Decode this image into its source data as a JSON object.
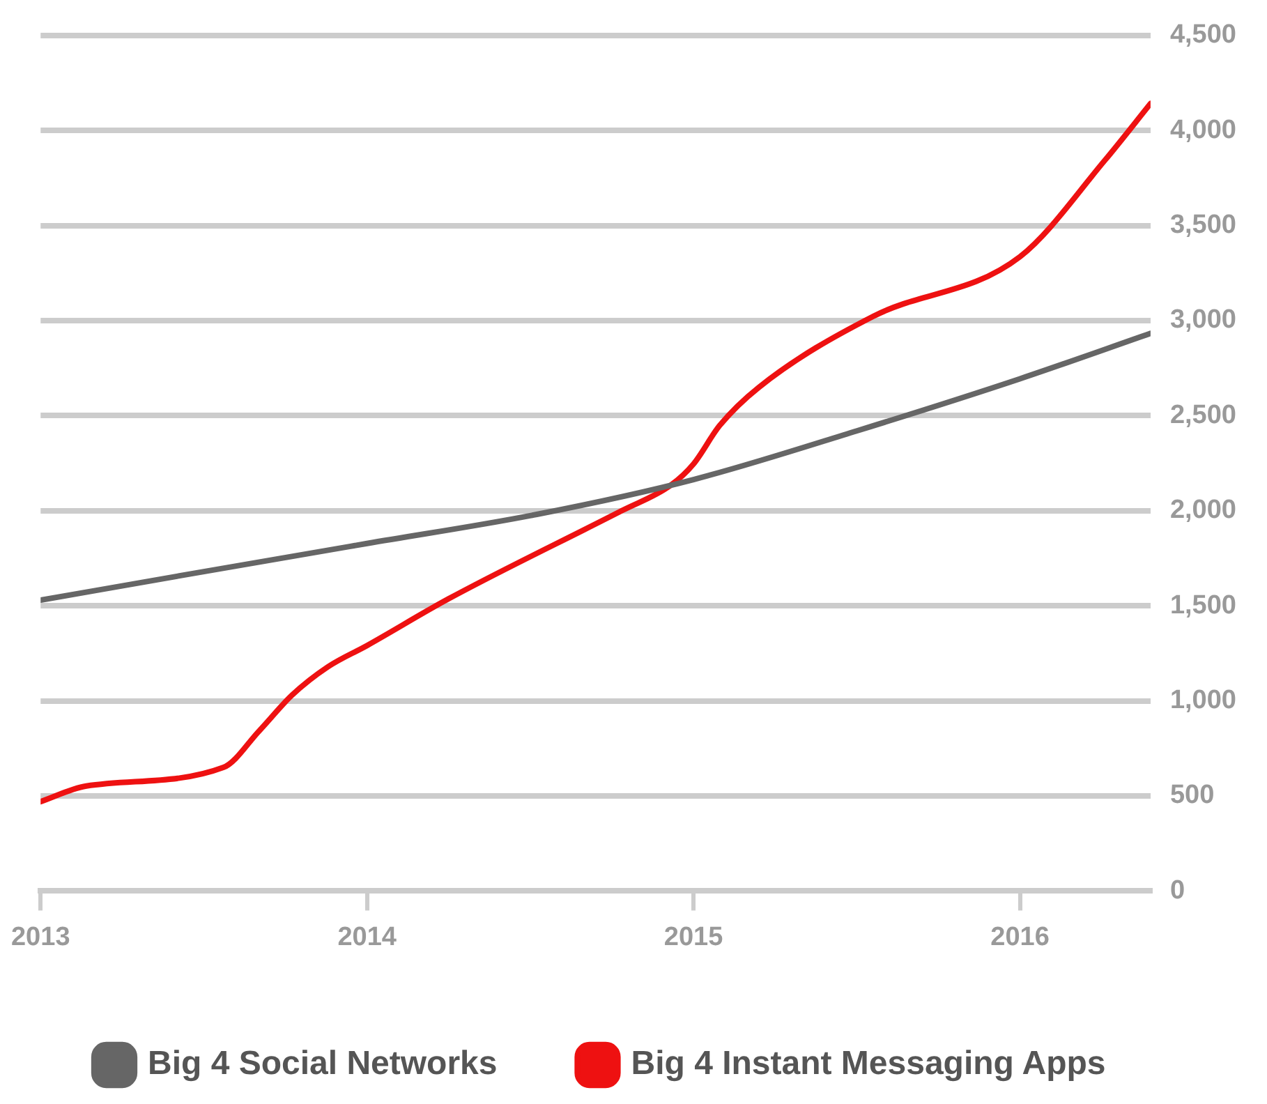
{
  "chart_data": {
    "type": "line",
    "xlim": [
      2013,
      2016.4
    ],
    "xticks": [
      2013,
      2014,
      2015,
      2016
    ],
    "ylim": [
      0,
      4500
    ],
    "yticks": [
      0,
      500,
      {
        "value": 1000,
        "label": "1,000"
      },
      {
        "value": 1500,
        "label": "1,500"
      },
      {
        "value": 2000,
        "label": "2,000"
      },
      {
        "value": 2500,
        "label": "2,500"
      },
      {
        "value": 3000,
        "label": "3,000"
      },
      {
        "value": 3500,
        "label": "3,500"
      },
      {
        "value": 4000,
        "label": "4,000"
      },
      {
        "value": 4500,
        "label": "4,500"
      }
    ],
    "grid": "y",
    "legend": "bottom",
    "marker": "none",
    "line_style": "solid",
    "series": [
      {
        "name": "Big 4 Social Networks",
        "color": "#666666",
        "x": [
          2013,
          2013.5,
          2014,
          2014.52,
          2015,
          2015.5,
          2016,
          2016.4
        ],
        "values": [
          1530,
          1680,
          1828,
          1981,
          2164,
          2420,
          2694,
          2933
        ]
      },
      {
        "name": "Big 4 Instant Messaging Apps",
        "color": "#ee1111",
        "x": [
          2013,
          2013.14,
          2013.56,
          2013.67,
          2013.77,
          2013.88,
          2014,
          2014.25,
          2014.78,
          2014.93,
          2015,
          2015.08,
          2015.2,
          2015.55,
          2016,
          2016.26,
          2016.4
        ],
        "values": [
          470,
          552,
          650,
          843,
          1030,
          1179,
          1291,
          1537,
          2000,
          2134,
          2246,
          2448,
          2649,
          3022,
          3336,
          3843,
          4142
        ]
      }
    ]
  }
}
